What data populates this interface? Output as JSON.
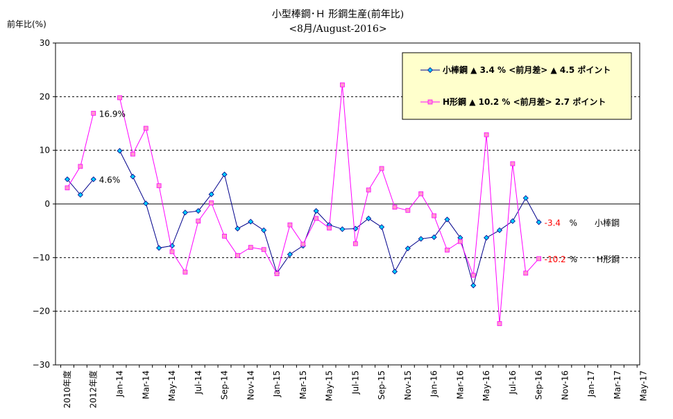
{
  "chart_data": {
    "type": "line",
    "title": "小型棒鋼･Ｈ 形鋼生産(前年比)",
    "subtitle": "<8月/August-2016>",
    "ylabel": "前年比(%)",
    "ylim": [
      -30,
      30
    ],
    "yticks": [
      30,
      20,
      10,
      0,
      -10,
      -20,
      -30
    ],
    "grid": true,
    "legend_position": "top-right",
    "categories": [
      "2010年度",
      "2011年度",
      "2012年度",
      "2013年度",
      "Jan-14",
      "Feb-14",
      "Mar-14",
      "Apr-14",
      "May-14",
      "Jun-14",
      "Jul-14",
      "Aug-14",
      "Sep-14",
      "Oct-14",
      "Nov-14",
      "Dec-14",
      "Jan-15",
      "Feb-15",
      "Mar-15",
      "Apr-15",
      "May-15",
      "Jun-15",
      "Jul-15",
      "Aug-15",
      "Sep-15",
      "Oct-15",
      "Nov-15",
      "Dec-15",
      "Jan-16",
      "Feb-16",
      "Mar-16",
      "Apr-16",
      "May-16",
      "Jun-16",
      "Jul-16",
      "Aug-16",
      "Sep-16",
      "Oct-16",
      "Nov-16",
      "Dec-16",
      "Jan-17",
      "Feb-17",
      "Mar-17",
      "Apr-17",
      "May-17"
    ],
    "tick_labels": [
      {
        "index": 0,
        "label": "2010年度"
      },
      {
        "index": 2,
        "label": "2012年度"
      },
      {
        "index": 4,
        "label": "Jan-14"
      },
      {
        "index": 6,
        "label": "Mar-14"
      },
      {
        "index": 8,
        "label": "May-14"
      },
      {
        "index": 10,
        "label": "Jul-14"
      },
      {
        "index": 12,
        "label": "Sep-14"
      },
      {
        "index": 14,
        "label": "Nov-14"
      },
      {
        "index": 16,
        "label": "Jan-15"
      },
      {
        "index": 18,
        "label": "Mar-15"
      },
      {
        "index": 20,
        "label": "May-15"
      },
      {
        "index": 22,
        "label": "Jul-15"
      },
      {
        "index": 24,
        "label": "Sep-15"
      },
      {
        "index": 26,
        "label": "Nov-15"
      },
      {
        "index": 28,
        "label": "Jan-16"
      },
      {
        "index": 30,
        "label": "Mar-16"
      },
      {
        "index": 32,
        "label": "May-16"
      },
      {
        "index": 34,
        "label": "Jul-16"
      },
      {
        "index": 36,
        "label": "Sep-16"
      },
      {
        "index": 38,
        "label": "Nov-16"
      },
      {
        "index": 40,
        "label": "Jan-17"
      },
      {
        "index": 42,
        "label": "Mar-17"
      },
      {
        "index": 44,
        "label": "May-17"
      }
    ],
    "series": [
      {
        "name": "小棒鋼",
        "legend": "小棒鋼 ▲ 3.4 % <前月差> ▲ 4.5 ポイント",
        "color": "#00008b",
        "marker_fill": "#00ccff",
        "marker": "diamond",
        "annual": [
          4.6,
          1.7,
          4.6
        ],
        "annual_start_index": 0,
        "monthly": [
          9.9,
          5.1,
          0.1,
          -8.2,
          -7.8,
          -1.6,
          -1.3,
          1.8,
          5.5,
          -4.6,
          -3.3,
          -4.9,
          -12.9,
          -9.4,
          -7.8,
          -1.3,
          -3.9,
          -4.7,
          -4.6,
          -2.7,
          -4.3,
          -12.6,
          -8.3,
          -6.5,
          -6.2,
          -2.9,
          -6.3,
          -15.2,
          -6.3,
          -4.9,
          -3.2,
          1.1,
          -3.4
        ],
        "monthly_start_index": 4,
        "value_labels": [
          {
            "index": 2,
            "text": "4.6%"
          },
          {
            "index": 36,
            "text": "-3.4"
          }
        ],
        "end_unit": "%",
        "end_name": "小棒鋼"
      },
      {
        "name": "H形鋼",
        "legend": "H形鋼 ▲ 10.2 % <前月差> 2.7 ポイント",
        "color": "#ff00ff",
        "marker_fill": "#ff99cc",
        "marker": "square",
        "annual": [
          3.0,
          7.0,
          16.9
        ],
        "annual_start_index": 0,
        "monthly": [
          19.8,
          9.3,
          14.1,
          3.4,
          -8.9,
          -12.7,
          -3.2,
          0.2,
          -6.0,
          -9.6,
          -8.1,
          -8.5,
          -13.0,
          -3.9,
          -7.5,
          -2.7,
          -4.5,
          22.2,
          -7.4,
          2.6,
          6.6,
          -0.6,
          -1.2,
          1.9,
          -2.2,
          -8.6,
          -7.0,
          -13.3,
          12.9,
          -22.3,
          7.5,
          -12.9,
          -10.2
        ],
        "monthly_start_index": 4,
        "value_labels": [
          {
            "index": 2,
            "text": "16.9%"
          },
          {
            "index": 36,
            "text": "-10.2"
          }
        ],
        "end_unit": "%",
        "end_name": "H形鋼"
      }
    ]
  }
}
